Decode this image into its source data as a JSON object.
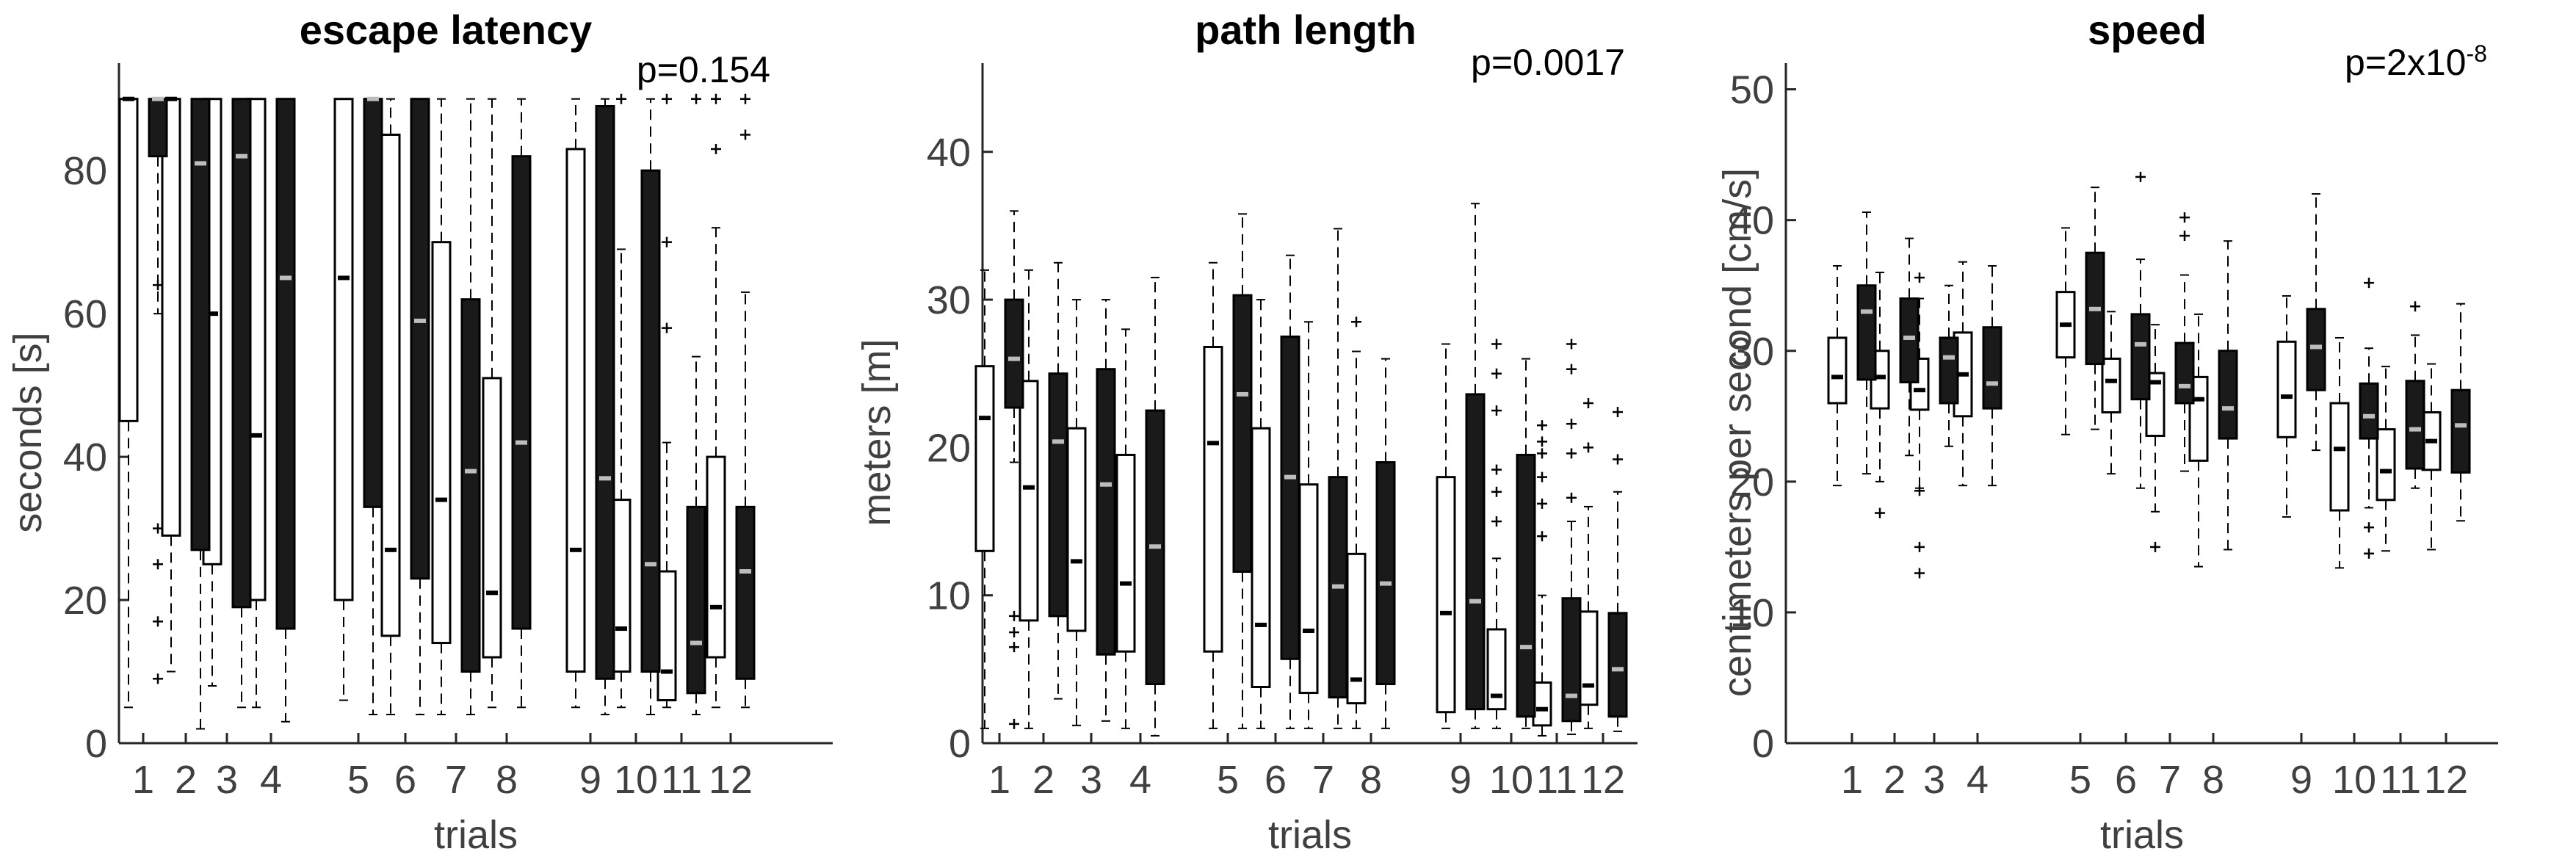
{
  "chart_data": [
    {
      "type": "box",
      "title": "escape latency",
      "pvalue": "p=0.154",
      "xlabel": "trials",
      "ylabel": "seconds [s]",
      "ylim": [
        0,
        95
      ],
      "yticks": [
        0,
        20,
        40,
        60,
        80
      ],
      "categories": [
        "1",
        "2",
        "3",
        "4",
        "5",
        "6",
        "7",
        "8",
        "9",
        "10",
        "11",
        "12"
      ],
      "series": [
        {
          "style": "open",
          "boxes": [
            {
              "lo": 5,
              "q1": 45,
              "med": 90,
              "q3": 90,
              "hi": 90,
              "out": []
            },
            {
              "lo": 10,
              "q1": 29,
              "med": 90,
              "q3": 90,
              "hi": 90,
              "out": []
            },
            {
              "lo": 8,
              "q1": 25,
              "med": 60,
              "q3": 90,
              "hi": 90,
              "out": []
            },
            {
              "lo": 5,
              "q1": 20,
              "med": 43,
              "q3": 90,
              "hi": 90,
              "out": []
            },
            {
              "lo": 6,
              "q1": 20,
              "med": 65,
              "q3": 90,
              "hi": 90,
              "out": []
            },
            {
              "lo": 4,
              "q1": 15,
              "med": 27,
              "q3": 85,
              "hi": 90,
              "out": []
            },
            {
              "lo": 4,
              "q1": 14,
              "med": 34,
              "q3": 70,
              "hi": 90,
              "out": []
            },
            {
              "lo": 5,
              "q1": 12,
              "med": 21,
              "q3": 51,
              "hi": 90,
              "out": []
            },
            {
              "lo": 5,
              "q1": 10,
              "med": 27,
              "q3": 83,
              "hi": 90,
              "out": []
            },
            {
              "lo": 5,
              "q1": 10,
              "med": 16,
              "q3": 34,
              "hi": 69,
              "out": [
                90
              ]
            },
            {
              "lo": 5,
              "q1": 6,
              "med": 10,
              "q3": 24,
              "hi": 42,
              "out": [
                58,
                70,
                90
              ]
            },
            {
              "lo": 5,
              "q1": 12,
              "med": 19,
              "q3": 40,
              "hi": 72,
              "out": [
                83,
                90
              ]
            }
          ]
        },
        {
          "style": "filled",
          "boxes": [
            {
              "lo": 60,
              "q1": 82,
              "med": 90,
              "q3": 90,
              "hi": 90,
              "out": [
                64,
                30,
                25,
                17,
                9
              ]
            },
            {
              "lo": 2,
              "q1": 27,
              "med": 81,
              "q3": 90,
              "hi": 90,
              "out": []
            },
            {
              "lo": 5,
              "q1": 19,
              "med": 82,
              "q3": 90,
              "hi": 90,
              "out": []
            },
            {
              "lo": 3,
              "q1": 16,
              "med": 65,
              "q3": 90,
              "hi": 90,
              "out": []
            },
            {
              "lo": 4,
              "q1": 33,
              "med": 90,
              "q3": 90,
              "hi": 90,
              "out": []
            },
            {
              "lo": 4,
              "q1": 23,
              "med": 59,
              "q3": 90,
              "hi": 90,
              "out": []
            },
            {
              "lo": 4,
              "q1": 10,
              "med": 38,
              "q3": 62,
              "hi": 90,
              "out": []
            },
            {
              "lo": 5,
              "q1": 16,
              "med": 42,
              "q3": 82,
              "hi": 90,
              "out": []
            },
            {
              "lo": 4,
              "q1": 9,
              "med": 37,
              "q3": 89,
              "hi": 90,
              "out": []
            },
            {
              "lo": 4,
              "q1": 10,
              "med": 25,
              "q3": 80,
              "hi": 90,
              "out": []
            },
            {
              "lo": 4,
              "q1": 7,
              "med": 14,
              "q3": 33,
              "hi": 54,
              "out": [
                90
              ]
            },
            {
              "lo": 5,
              "q1": 9,
              "med": 24,
              "q3": 33,
              "hi": 63,
              "out": [
                85,
                90
              ]
            }
          ]
        }
      ]
    },
    {
      "type": "box",
      "title": "path length",
      "pvalue": "p=0.0017",
      "xlabel": "trials",
      "ylabel": "meters [m]",
      "ylim": [
        0,
        46
      ],
      "yticks": [
        0,
        10,
        20,
        30,
        40
      ],
      "categories": [
        "1",
        "2",
        "3",
        "4",
        "5",
        "6",
        "7",
        "8",
        "9",
        "10",
        "11",
        "12"
      ],
      "series": [
        {
          "style": "open",
          "boxes": [
            {
              "lo": 1,
              "q1": 13,
              "med": 22,
              "q3": 25.5,
              "hi": 32,
              "out": []
            },
            {
              "lo": 1,
              "q1": 8.3,
              "med": 17.3,
              "q3": 24.5,
              "hi": 32,
              "out": []
            },
            {
              "lo": 1.2,
              "q1": 7.6,
              "med": 12.3,
              "q3": 21.3,
              "hi": 30,
              "out": []
            },
            {
              "lo": 1,
              "q1": 6.2,
              "med": 10.8,
              "q3": 19.5,
              "hi": 28,
              "out": []
            },
            {
              "lo": 1,
              "q1": 6.2,
              "med": 20.3,
              "q3": 26.8,
              "hi": 32.5,
              "out": []
            },
            {
              "lo": 1,
              "q1": 3.8,
              "med": 8,
              "q3": 21.3,
              "hi": 30,
              "out": []
            },
            {
              "lo": 1,
              "q1": 3.4,
              "med": 7.6,
              "q3": 17.5,
              "hi": 28.5,
              "out": []
            },
            {
              "lo": 1,
              "q1": 2.7,
              "med": 4.3,
              "q3": 12.8,
              "hi": 26.5,
              "out": [
                28.5
              ]
            },
            {
              "lo": 1,
              "q1": 2.1,
              "med": 8.8,
              "q3": 18,
              "hi": 27,
              "out": []
            },
            {
              "lo": 1,
              "q1": 2.3,
              "med": 3.2,
              "q3": 7.7,
              "hi": 12.5,
              "out": [
                15,
                17,
                18.5,
                22.5,
                25,
                27
              ]
            },
            {
              "lo": 0.5,
              "q1": 1.2,
              "med": 2.3,
              "q3": 4.1,
              "hi": 10,
              "out": [
                14,
                16.2,
                18,
                19.6,
                20.4,
                21.5
              ]
            },
            {
              "lo": 1,
              "q1": 2.6,
              "med": 3.9,
              "q3": 8.9,
              "hi": 16,
              "out": [
                20,
                23
              ]
            }
          ]
        },
        {
          "style": "filled",
          "boxes": [
            {
              "lo": 19,
              "q1": 22.7,
              "med": 26,
              "q3": 30,
              "hi": 36,
              "out": [
                8.6,
                7.5,
                6.5,
                1.3
              ]
            },
            {
              "lo": 3,
              "q1": 8.6,
              "med": 20.4,
              "q3": 25,
              "hi": 32.5,
              "out": []
            },
            {
              "lo": 1.5,
              "q1": 6,
              "med": 17.5,
              "q3": 25.3,
              "hi": 30,
              "out": []
            },
            {
              "lo": 0.5,
              "q1": 4,
              "med": 13.3,
              "q3": 22.5,
              "hi": 31.5,
              "out": []
            },
            {
              "lo": 1,
              "q1": 11.6,
              "med": 23.6,
              "q3": 30.3,
              "hi": 35.8,
              "out": []
            },
            {
              "lo": 1,
              "q1": 5.7,
              "med": 18,
              "q3": 27.5,
              "hi": 33,
              "out": []
            },
            {
              "lo": 1,
              "q1": 3.1,
              "med": 10.6,
              "q3": 18,
              "hi": 34.8,
              "out": []
            },
            {
              "lo": 1,
              "q1": 4,
              "med": 10.8,
              "q3": 19,
              "hi": 26,
              "out": []
            },
            {
              "lo": 1,
              "q1": 2.3,
              "med": 9.6,
              "q3": 23.6,
              "hi": 36.5,
              "out": []
            },
            {
              "lo": 1,
              "q1": 1.8,
              "med": 6.5,
              "q3": 19.5,
              "hi": 26,
              "out": []
            },
            {
              "lo": 0.6,
              "q1": 1.5,
              "med": 3.2,
              "q3": 9.8,
              "hi": 15,
              "out": [
                16.6,
                19.6,
                21.6,
                25.3,
                27
              ]
            },
            {
              "lo": 0.8,
              "q1": 1.8,
              "med": 5,
              "q3": 8.8,
              "hi": 17,
              "out": [
                19.2,
                22.4
              ]
            }
          ]
        }
      ]
    },
    {
      "type": "box",
      "title": "speed",
      "pvalue": "p=2x10",
      "pvalue_exp": "-8",
      "xlabel": "trials",
      "ylabel": "centimeters per second [cm/s]",
      "ylim": [
        0,
        52
      ],
      "yticks": [
        0,
        10,
        20,
        30,
        40,
        50
      ],
      "categories": [
        "1",
        "2",
        "3",
        "4",
        "5",
        "6",
        "7",
        "8",
        "9",
        "10",
        "11",
        "12"
      ],
      "series": [
        {
          "style": "open",
          "boxes": [
            {
              "lo": 19.7,
              "q1": 26,
              "med": 28,
              "q3": 31,
              "hi": 36.5,
              "out": []
            },
            {
              "lo": 20,
              "q1": 25.6,
              "med": 28,
              "q3": 30,
              "hi": 36,
              "out": [
                17.6
              ]
            },
            {
              "lo": 19.5,
              "q1": 25.5,
              "med": 27,
              "q3": 29.4,
              "hi": 34,
              "out": [
                35.6,
                19.3,
                15,
                13
              ]
            },
            {
              "lo": 19.7,
              "q1": 25,
              "med": 28.2,
              "q3": 31.4,
              "hi": 36.8,
              "out": []
            },
            {
              "lo": 23.6,
              "q1": 29.5,
              "med": 32,
              "q3": 34.5,
              "hi": 39.4,
              "out": []
            },
            {
              "lo": 20.6,
              "q1": 25.3,
              "med": 27.7,
              "q3": 29.4,
              "hi": 33,
              "out": []
            },
            {
              "lo": 17.7,
              "q1": 23.5,
              "med": 27.6,
              "q3": 28.3,
              "hi": 32,
              "out": [
                15
              ]
            },
            {
              "lo": 13.5,
              "q1": 21.6,
              "med": 26.3,
              "q3": 28,
              "hi": 32.8,
              "out": []
            },
            {
              "lo": 17.3,
              "q1": 23.4,
              "med": 26.5,
              "q3": 30.7,
              "hi": 34.2,
              "out": []
            },
            {
              "lo": 13.4,
              "q1": 17.8,
              "med": 22.5,
              "q3": 26,
              "hi": 31,
              "out": []
            },
            {
              "lo": 14.7,
              "q1": 18.6,
              "med": 20.8,
              "q3": 24,
              "hi": 28.8,
              "out": []
            },
            {
              "lo": 14.8,
              "q1": 20.9,
              "med": 23.1,
              "q3": 25.3,
              "hi": 29,
              "out": []
            }
          ]
        },
        {
          "style": "filled",
          "boxes": [
            {
              "lo": 20.6,
              "q1": 27.8,
              "med": 33,
              "q3": 35,
              "hi": 40.6,
              "out": []
            },
            {
              "lo": 22,
              "q1": 27.6,
              "med": 31,
              "q3": 34,
              "hi": 38.6,
              "out": []
            },
            {
              "lo": 22.7,
              "q1": 26,
              "med": 29.5,
              "q3": 31,
              "hi": 35,
              "out": []
            },
            {
              "lo": 19.7,
              "q1": 25.6,
              "med": 27.5,
              "q3": 31.8,
              "hi": 36.5,
              "out": []
            },
            {
              "lo": 24,
              "q1": 29,
              "med": 33.2,
              "q3": 37.5,
              "hi": 42.5,
              "out": []
            },
            {
              "lo": 19.5,
              "q1": 26.3,
              "med": 30.5,
              "q3": 32.8,
              "hi": 37,
              "out": [
                43.3
              ]
            },
            {
              "lo": 20.8,
              "q1": 26,
              "med": 27.3,
              "q3": 30.6,
              "hi": 35.8,
              "out": [
                38.8,
                40.2
              ]
            },
            {
              "lo": 14.8,
              "q1": 23.3,
              "med": 25.6,
              "q3": 30,
              "hi": 38.4,
              "out": []
            },
            {
              "lo": 22.4,
              "q1": 27,
              "med": 30.3,
              "q3": 33.2,
              "hi": 42,
              "out": []
            },
            {
              "lo": 18,
              "q1": 23.3,
              "med": 25,
              "q3": 27.5,
              "hi": 30.2,
              "out": [
                35.2,
                16.5,
                14.5
              ]
            },
            {
              "lo": 19.5,
              "q1": 21,
              "med": 24,
              "q3": 27.7,
              "hi": 31.2,
              "out": [
                33.4
              ]
            },
            {
              "lo": 17,
              "q1": 20.7,
              "med": 24.3,
              "q3": 27,
              "hi": 33.6,
              "out": []
            }
          ]
        }
      ]
    }
  ]
}
